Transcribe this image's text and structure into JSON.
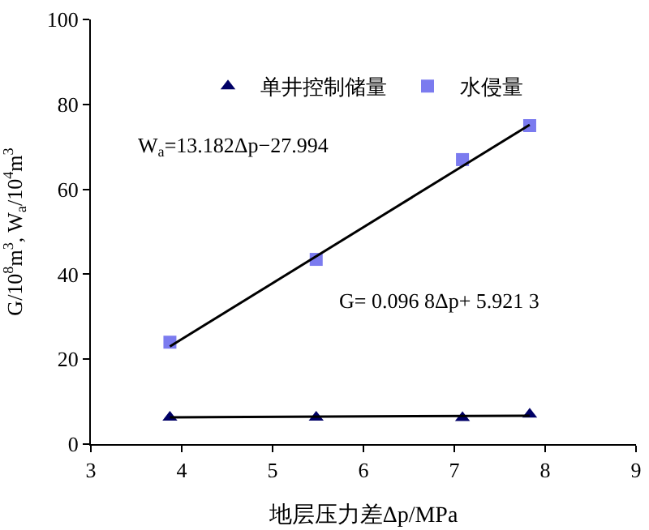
{
  "chart_data": {
    "type": "scatter",
    "xlabel": "地层压力差Δp/MPa",
    "ylabel": "G/10$^{8}$m$^{3}$, W$_{a}$/10$^{4}$m$^{3}$",
    "xlim": [
      3,
      9
    ],
    "xticks": [
      3,
      4,
      5,
      6,
      7,
      8,
      9
    ],
    "ylim": [
      0,
      100
    ],
    "yticks": [
      0,
      20,
      40,
      60,
      80,
      100
    ],
    "legend": "top",
    "series": [
      {
        "name": "单井控制储量",
        "color": "#000066",
        "marker": "triangle",
        "x": [
          3.87,
          5.48,
          7.09,
          7.83
        ],
        "values": [
          6.3,
          6.3,
          6.2,
          7.0
        ]
      },
      {
        "name": "水侵量",
        "color": "#7b7bef",
        "marker": "square",
        "x": [
          3.87,
          5.48,
          7.09,
          7.83
        ],
        "values": [
          24,
          43.5,
          67,
          75
        ]
      },
      {
        "type": "line",
        "color": "#000000",
        "marker": "none",
        "x": [
          3.87,
          7.83
        ],
        "values": [
          23.0,
          75.2
        ]
      },
      {
        "type": "line",
        "color": "#000000",
        "marker": "none",
        "x": [
          3.87,
          7.83
        ],
        "values": [
          6.3,
          6.7
        ]
      }
    ],
    "annotations": [
      "W$_{a}$=13.182Δp−27.994",
      "G= 0.096 8Δp+ 5.921 3"
    ]
  }
}
